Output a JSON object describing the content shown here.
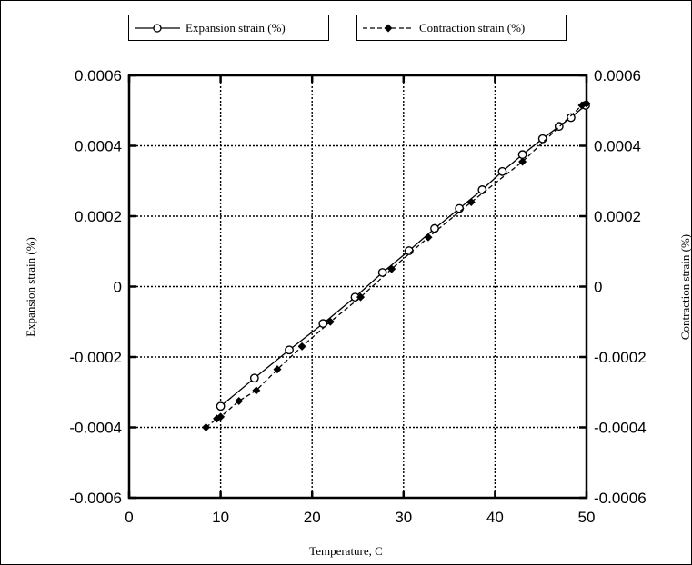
{
  "chart_data": {
    "type": "line",
    "xlabel": "Temperature, C",
    "ylabel_left": "Expansion strain (%)",
    "ylabel_right": "Contraction strain (%)",
    "xlim": [
      0,
      50
    ],
    "ylim": [
      -0.0006,
      0.0006
    ],
    "x_ticks": [
      "0",
      "10",
      "20",
      "30",
      "40",
      "50"
    ],
    "y_ticks": [
      "0.0006",
      "0.0004",
      "0.0002",
      "0",
      "-0.0002",
      "-0.0004",
      "-0.0006"
    ],
    "grid": true,
    "legend_position": "top",
    "series": [
      {
        "name": "Expansion strain (%)",
        "marker": "open-circle",
        "line": "solid",
        "color": "#000000",
        "x": [
          10.0,
          13.7,
          17.5,
          21.2,
          24.7,
          27.7,
          30.6,
          33.4,
          36.1,
          38.6,
          40.8,
          43.0,
          45.2,
          47.0,
          48.3,
          49.9
        ],
        "y": [
          -0.00034,
          -0.00026,
          -0.00018,
          -0.000105,
          -3e-05,
          4e-05,
          0.000102,
          0.000165,
          0.000222,
          0.000275,
          0.000327,
          0.000375,
          0.00042,
          0.000455,
          0.00048,
          0.000515
        ]
      },
      {
        "name": "Contraction strain (%)",
        "marker": "filled-diamond",
        "line": "dashed",
        "color": "#000000",
        "x": [
          8.4,
          9.6,
          10.0,
          12.0,
          13.9,
          16.2,
          18.9,
          22.0,
          25.3,
          28.7,
          32.7,
          37.4,
          43.0,
          49.5,
          50.0
        ],
        "y": [
          -0.0004,
          -0.000375,
          -0.00037,
          -0.000325,
          -0.000295,
          -0.000235,
          -0.00017,
          -0.0001,
          -3e-05,
          5e-05,
          0.00014,
          0.00024,
          0.000355,
          0.000515,
          0.00052
        ]
      }
    ]
  }
}
